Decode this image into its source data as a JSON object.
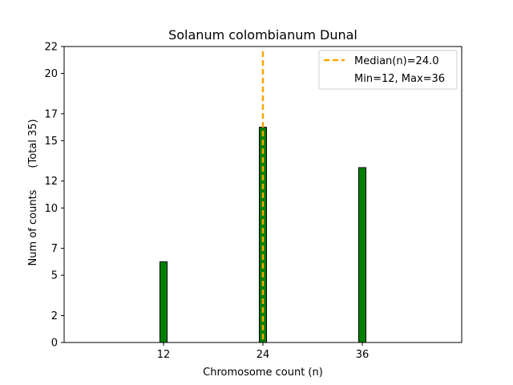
{
  "chart_data": {
    "type": "bar",
    "title": "Solanum colombianum Dunal",
    "xlabel": "Chromosome count (n)",
    "ylabel": "Num of counts",
    "ylabel_secondary": "(Total 35)",
    "x": [
      12,
      24,
      36
    ],
    "values": [
      6,
      16,
      13
    ],
    "xlim": [
      0,
      48
    ],
    "ylim": [
      0,
      22
    ],
    "xticks": [
      12,
      24,
      36
    ],
    "yticks": [
      0,
      2,
      5,
      7,
      10,
      12,
      15,
      17,
      20,
      22
    ],
    "bar_color": "#008000",
    "bar_edge_color": "#000000",
    "grid": false,
    "median": {
      "value": 24.0,
      "color": "#ffa500",
      "label": "Median(n)=24.0"
    },
    "legend": {
      "placement": "top-right",
      "entries": [
        "Median(n)=24.0",
        "Min=12, Max=36"
      ]
    }
  }
}
